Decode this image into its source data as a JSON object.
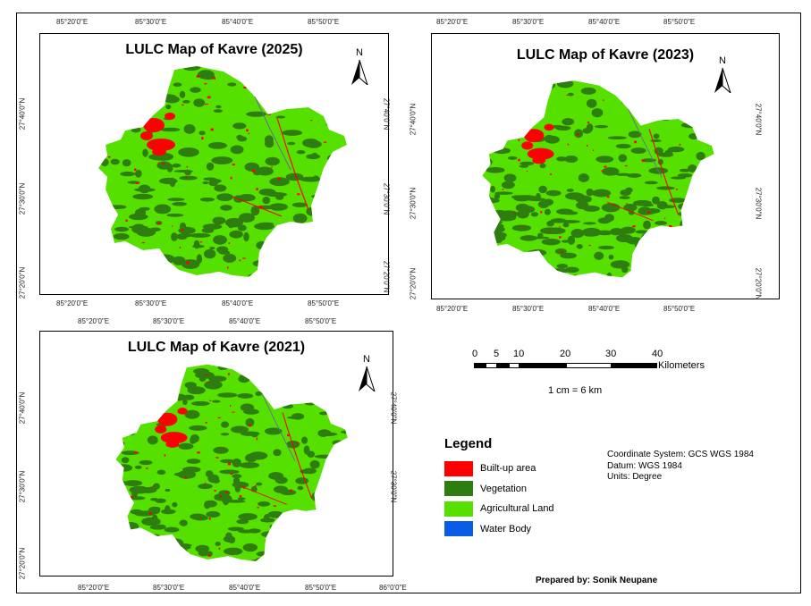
{
  "maps": [
    {
      "id": "map-2025",
      "title": "LULC Map of Kavre (2025)",
      "top_labels": [
        "85°20'0\"E",
        "85°30'0\"E",
        "85°40'0\"E",
        "85°50'0\"E"
      ],
      "bottom_labels": [
        "85°20'0\"E",
        "85°30'0\"E",
        "85°40'0\"E",
        "85°50'0\"E"
      ],
      "left_labels": [
        "27°40'0\"N",
        "27°30'0\"N",
        "27°20'0\"N"
      ],
      "right_labels": [
        "27°40'0\"N",
        "27°30'0\"N",
        "27°20'0\"N"
      ]
    },
    {
      "id": "map-2023",
      "title": "LULC Map of Kavre (2023)",
      "top_labels": [
        "85°20'0\"E",
        "85°30'0\"E",
        "85°40'0\"E",
        "85°50'0\"E"
      ],
      "bottom_labels": [
        "85°20'0\"E",
        "85°30'0\"E",
        "85°40'0\"E",
        "85°50'0\"E"
      ],
      "left_labels": [
        "27°40'0\"N",
        "27°30'0\"N",
        "27°20'0\"N"
      ],
      "right_labels": [
        "27°40'0\"N",
        "27°30'0\"N",
        "27°20'0\"N"
      ]
    },
    {
      "id": "map-2021",
      "title": "LULC Map of Kavre (2021)",
      "top_labels": [
        "85°20'0\"E",
        "85°30'0\"E",
        "85°40'0\"E",
        "85°50'0\"E"
      ],
      "bottom_labels": [
        "85°20'0\"E",
        "85°30'0\"E",
        "85°40'0\"E",
        "85°50'0\"E",
        "86°0'0\"E"
      ],
      "left_labels": [
        "27°40'0\"N",
        "27°30'0\"N",
        "27°20'0\"N"
      ],
      "right_labels": [
        "27°40'0\"N",
        "27°30'0\"N"
      ]
    }
  ],
  "north_label": "N",
  "scale_bar": {
    "ticks": [
      "0",
      "5",
      "10",
      "20",
      "30",
      "40"
    ],
    "unit": "Kilometers",
    "ratio": "1 cm = 6 km"
  },
  "legend": {
    "title": "Legend",
    "items": [
      {
        "label": "Built-up area",
        "color": "#ff0000"
      },
      {
        "label": "Vegetation",
        "color": "#2e7d0f"
      },
      {
        "label": "Agricultural Land",
        "color": "#55e000"
      },
      {
        "label": "Water Body",
        "color": "#0a5ce6"
      }
    ]
  },
  "info": {
    "coordinate_system": "Coordinate System: GCS WGS 1984",
    "datum": "Datum: WGS 1984",
    "units": "Units: Degree"
  },
  "prepared_by": "Prepared by: Sonik Neupane",
  "colors": {
    "vegetation": "#2e7d0f",
    "agriculture": "#55e000",
    "builtup": "#ff0000",
    "water": "#0a5ce6"
  }
}
